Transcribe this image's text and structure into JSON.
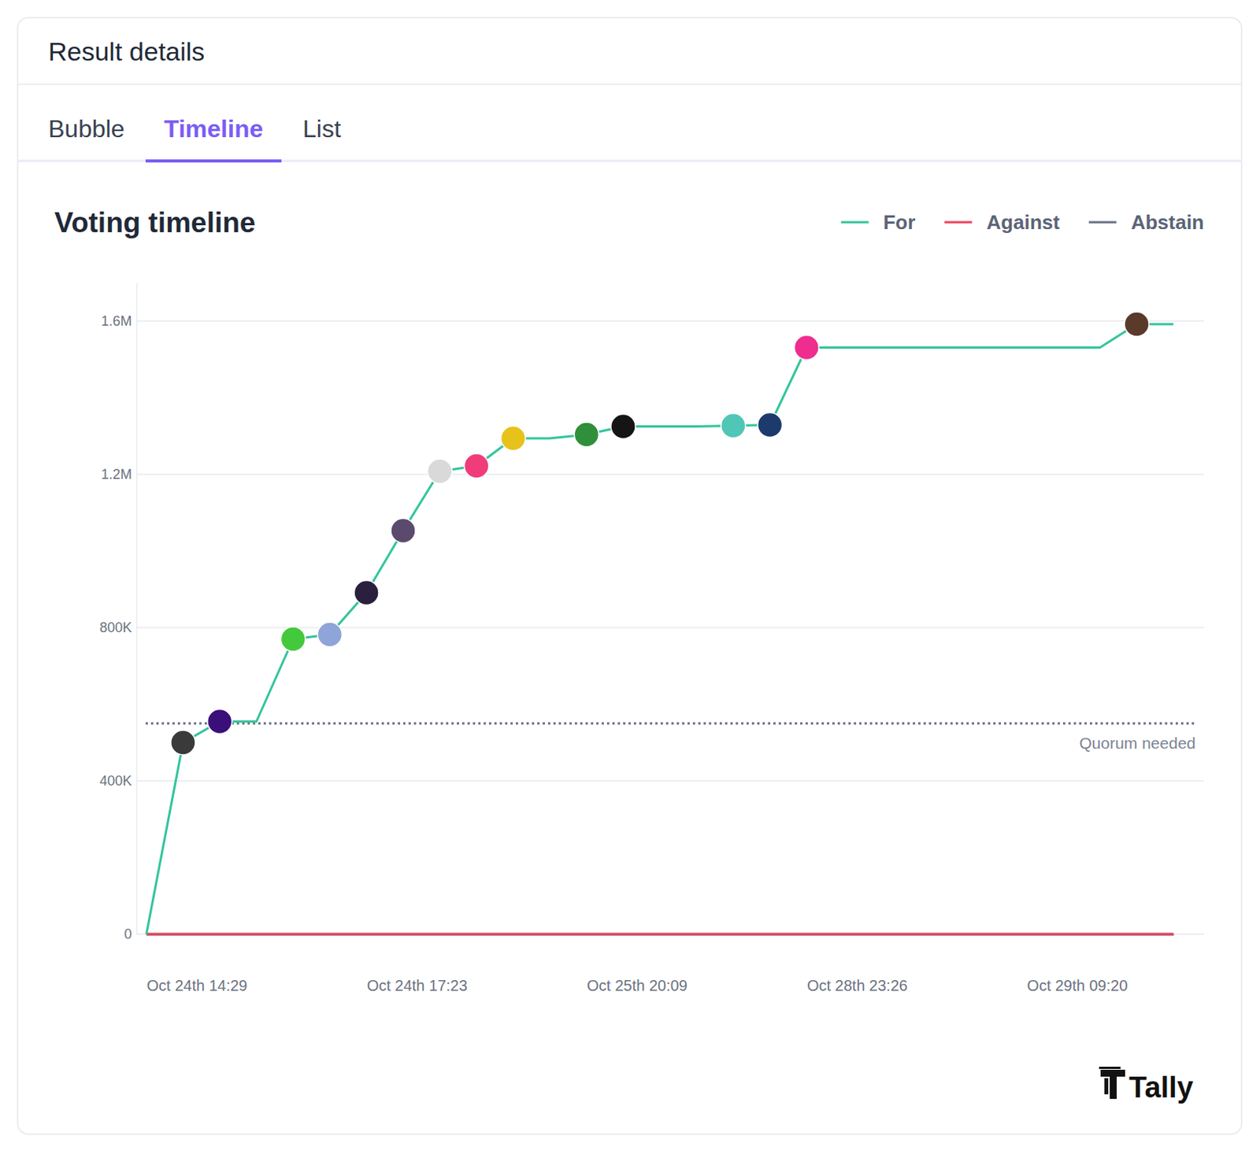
{
  "header": {
    "title": "Result details",
    "tabs": [
      "Bubble",
      "Timeline",
      "List"
    ],
    "active_tab": 1
  },
  "chart_data": {
    "type": "line",
    "title": "Voting timeline",
    "categories": [
      "Oct 24th 14:29",
      null,
      null,
      null,
      null,
      null,
      "Oct 24th 17:23",
      null,
      null,
      null,
      null,
      null,
      "Oct 25th 20:09",
      null,
      null,
      null,
      null,
      null,
      "Oct 28th 23:26",
      null,
      null,
      null,
      null,
      null,
      "Oct 29th 09:20",
      null,
      null,
      null,
      null
    ],
    "series": [
      {
        "name": "For",
        "color": "#34c59c",
        "values": [
          0,
          500000,
          555000,
          555000,
          770000,
          782000,
          891000,
          1053000,
          1208000,
          1222000,
          1294000,
          1294000,
          1304000,
          1325000,
          1325000,
          1325000,
          1327000,
          1329000,
          1531000,
          1531000,
          1531000,
          1531000,
          1531000,
          1531000,
          1531000,
          1531000,
          1531000,
          1592000,
          1592000
        ]
      },
      {
        "name": "Against",
        "color": "#f0445d",
        "values": [
          0,
          0,
          0,
          0,
          0,
          0,
          0,
          0,
          0,
          0,
          0,
          0,
          0,
          0,
          0,
          0,
          0,
          0,
          0,
          0,
          0,
          0,
          0,
          0,
          0,
          0,
          0,
          0,
          0
        ]
      },
      {
        "name": "Abstain",
        "color": "#6b7386",
        "values": [
          0,
          0,
          0,
          0,
          0,
          0,
          0,
          0,
          0,
          0,
          0,
          0,
          0,
          0,
          0,
          0,
          0,
          0,
          0,
          0,
          0,
          0,
          0,
          0,
          0,
          0,
          0,
          0,
          0
        ]
      }
    ],
    "ylim": [
      0,
      1700000
    ],
    "yticks": [
      0,
      {
        "value": 400000,
        "label": "400K"
      },
      {
        "value": 800000,
        "label": "800K"
      },
      {
        "value": 1200000,
        "label": "1.2M"
      },
      {
        "value": 1600000,
        "label": "1.6M"
      }
    ],
    "grid": true,
    "legend": "top-right",
    "marker": "circle",
    "quorum": {
      "label": "Quorum needed",
      "value": 550000
    }
  },
  "brand": "Tally"
}
